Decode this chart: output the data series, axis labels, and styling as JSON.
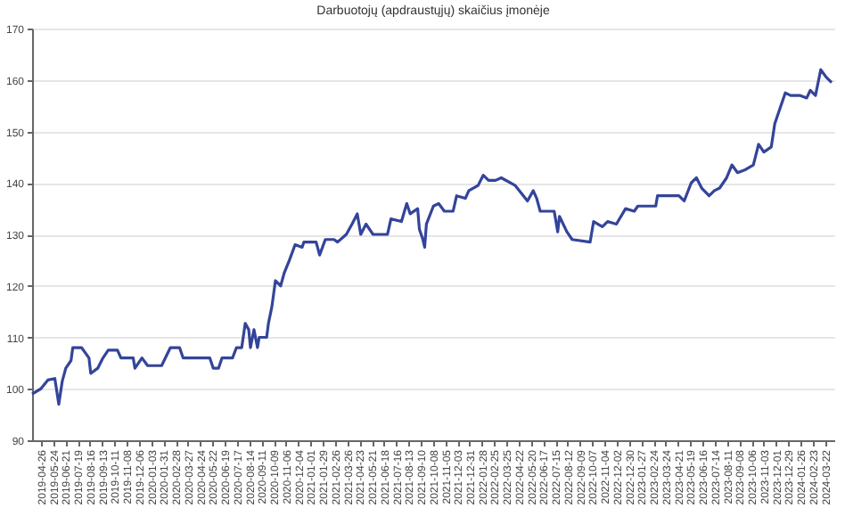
{
  "chart_data": {
    "type": "line",
    "title": "Darbuotojų (apdraustųjų) skaičius įmonėje",
    "x": [
      "2019-04-06",
      "2019-04-26",
      "2019-05-12",
      "2019-05-28",
      "2019-06-06",
      "2019-06-14",
      "2019-06-22",
      "2019-07-04",
      "2019-07-08",
      "2019-07-28",
      "2019-08-14",
      "2019-08-18",
      "2019-09-03",
      "2019-09-15",
      "2019-09-27",
      "2019-10-18",
      "2019-10-26",
      "2019-11-23",
      "2019-11-27",
      "2019-12-13",
      "2019-12-26",
      "2020-01-27",
      "2020-02-16",
      "2020-03-08",
      "2020-03-16",
      "2020-05-16",
      "2020-05-24",
      "2020-06-05",
      "2020-06-13",
      "2020-07-07",
      "2020-07-16",
      "2020-07-28",
      "2020-08-05",
      "2020-08-13",
      "2020-08-17",
      "2020-08-25",
      "2020-09-02",
      "2020-09-06",
      "2020-09-23",
      "2020-09-27",
      "2020-10-05",
      "2020-10-13",
      "2020-10-25",
      "2020-11-02",
      "2020-11-14",
      "2020-11-27",
      "2020-12-13",
      "2020-12-17",
      "2021-01-14",
      "2021-01-22",
      "2021-02-04",
      "2021-02-24",
      "2021-03-04",
      "2021-03-24",
      "2021-04-06",
      "2021-04-18",
      "2021-04-26",
      "2021-05-08",
      "2021-05-24",
      "2021-06-26",
      "2021-07-04",
      "2021-07-28",
      "2021-08-09",
      "2021-08-17",
      "2021-09-03",
      "2021-09-07",
      "2021-09-15",
      "2021-09-19",
      "2021-09-23",
      "2021-10-09",
      "2021-10-21",
      "2021-11-03",
      "2021-11-23",
      "2021-12-01",
      "2021-12-21",
      "2021-12-29",
      "2022-01-19",
      "2022-01-31",
      "2022-02-12",
      "2022-02-28",
      "2022-03-13",
      "2022-04-14",
      "2022-05-12",
      "2022-05-25",
      "2022-06-02",
      "2022-06-10",
      "2022-07-12",
      "2022-07-20",
      "2022-07-24",
      "2022-08-10",
      "2022-08-22",
      "2022-10-02",
      "2022-10-10",
      "2022-10-30",
      "2022-11-11",
      "2022-12-01",
      "2022-12-22",
      "2023-01-11",
      "2023-01-19",
      "2023-03-01",
      "2023-03-05",
      "2023-04-23",
      "2023-05-05",
      "2023-05-21",
      "2023-06-02",
      "2023-06-14",
      "2023-07-01",
      "2023-07-13",
      "2023-07-25",
      "2023-08-10",
      "2023-08-22",
      "2023-09-04",
      "2023-09-20",
      "2023-10-10",
      "2023-10-22",
      "2023-11-03",
      "2023-11-20",
      "2023-11-28",
      "2023-12-10",
      "2023-12-22",
      "2024-01-03",
      "2024-01-24",
      "2024-02-09",
      "2024-02-17",
      "2024-02-29",
      "2024-03-12",
      "2024-03-25",
      "2024-04-06"
    ],
    "series": [
      {
        "color": "#33449a",
        "values": [
          99,
          100,
          101.7,
          102,
          97,
          101.5,
          104,
          105.5,
          108,
          108,
          106,
          103,
          104,
          106,
          107.5,
          107.5,
          106,
          106,
          104,
          106,
          104.5,
          104.5,
          108,
          108,
          106,
          106,
          104,
          104,
          106,
          106,
          108,
          108,
          112.7,
          111.5,
          108,
          111.5,
          108,
          110,
          110,
          112.7,
          116,
          121,
          120,
          122.5,
          125,
          128,
          127.5,
          128.5,
          128.5,
          126,
          129,
          129,
          128.5,
          130,
          132,
          134,
          130,
          132,
          130,
          130,
          133,
          132.5,
          136,
          134,
          135,
          131,
          129,
          127.5,
          132,
          135.5,
          136,
          134.5,
          134.5,
          137.5,
          137,
          138.5,
          139.5,
          141.5,
          140.5,
          140.5,
          141,
          139.5,
          136.5,
          138.5,
          137,
          134.5,
          134.5,
          130.5,
          133.5,
          130.5,
          129,
          128.5,
          132.5,
          131.5,
          132.5,
          132,
          135,
          134.5,
          135.5,
          135.5,
          137.5,
          137.5,
          136.5,
          140,
          141,
          139,
          137.5,
          138.5,
          139,
          141,
          143.5,
          142,
          142.5,
          143.5,
          147.5,
          146,
          147,
          151.5,
          154.5,
          157.5,
          157,
          157,
          156.5,
          158,
          157,
          162,
          160.5,
          159.5
        ]
      }
    ],
    "xlim": [
      "2019-04-06",
      "2024-04-12"
    ],
    "xticks": [
      "2019-04-26",
      "2019-05-24",
      "2019-06-21",
      "2019-07-19",
      "2019-08-16",
      "2019-09-13",
      "2019-10-11",
      "2019-11-08",
      "2019-12-06",
      "2020-01-03",
      "2020-01-31",
      "2020-02-28",
      "2020-03-27",
      "2020-04-24",
      "2020-05-22",
      "2020-06-19",
      "2020-07-17",
      "2020-08-14",
      "2020-09-11",
      "2020-10-09",
      "2020-11-06",
      "2020-12-04",
      "2021-01-01",
      "2021-01-29",
      "2021-02-26",
      "2021-03-26",
      "2021-04-23",
      "2021-05-21",
      "2021-06-18",
      "2021-07-16",
      "2021-08-13",
      "2021-09-10",
      "2021-10-08",
      "2021-11-05",
      "2021-12-03",
      "2021-12-31",
      "2022-01-28",
      "2022-02-25",
      "2022-03-25",
      "2022-04-22",
      "2022-05-20",
      "2022-06-17",
      "2022-07-15",
      "2022-08-12",
      "2022-09-09",
      "2022-10-07",
      "2022-11-04",
      "2022-12-02",
      "2022-12-30",
      "2023-01-27",
      "2023-02-24",
      "2023-03-24",
      "2023-04-21",
      "2023-05-19",
      "2023-06-16",
      "2023-07-14",
      "2023-08-11",
      "2023-09-08",
      "2023-10-06",
      "2023-11-03",
      "2023-12-01",
      "2023-12-29",
      "2024-01-26",
      "2024-02-23",
      "2024-03-22"
    ],
    "ylim": [
      90,
      170
    ],
    "yticks": [
      90,
      100,
      110,
      120,
      130,
      140,
      150,
      160,
      170
    ],
    "grid": "y",
    "marker": "none",
    "line_style": "solid"
  }
}
